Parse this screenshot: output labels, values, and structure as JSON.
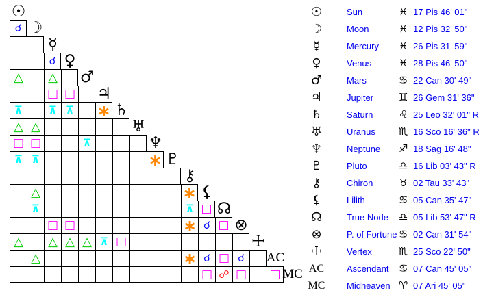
{
  "colors": {
    "table_text": "#0000ee",
    "glyph_black": "#000000",
    "grid_line": "#000000",
    "background": "#ffffff"
  },
  "aspects": {
    "conjunction": {
      "name": "conjunction",
      "symbol": "☌",
      "color": "#0000ff"
    },
    "sextile": {
      "name": "sextile",
      "symbol": "∗",
      "color": "#ff8800"
    },
    "square": {
      "name": "square",
      "symbol": "□",
      "color": "#ff00ff"
    },
    "trine": {
      "name": "trine",
      "symbol": "△",
      "color": "#00cc00"
    },
    "opposition": {
      "name": "opposition",
      "symbol": "☍",
      "color": "#ff0000"
    },
    "quincunx": {
      "name": "quincunx",
      "symbol": "⊼",
      "color": "#00ffff"
    }
  },
  "grid": {
    "rows": [
      {
        "id": "sun",
        "glyph": "☉",
        "angle": false,
        "cells": []
      },
      {
        "id": "moon",
        "glyph": "☽",
        "angle": false,
        "cells": [
          "conjunction"
        ]
      },
      {
        "id": "mercury",
        "glyph": "☿",
        "angle": false,
        "cells": [
          null,
          null
        ]
      },
      {
        "id": "venus",
        "glyph": "♀",
        "angle": false,
        "cells": [
          null,
          null,
          "conjunction"
        ]
      },
      {
        "id": "mars",
        "glyph": "♂",
        "angle": false,
        "cells": [
          "trine",
          null,
          "trine",
          null
        ]
      },
      {
        "id": "jupiter",
        "glyph": "♃",
        "angle": false,
        "cells": [
          null,
          null,
          "square",
          "square",
          null
        ]
      },
      {
        "id": "saturn",
        "glyph": "♄",
        "angle": false,
        "cells": [
          "quincunx",
          null,
          "quincunx",
          "quincunx",
          null,
          "sextile"
        ]
      },
      {
        "id": "uranus",
        "glyph": "♅",
        "angle": false,
        "cells": [
          "trine",
          "trine",
          null,
          null,
          null,
          null,
          null
        ]
      },
      {
        "id": "neptune",
        "glyph": "♆",
        "angle": false,
        "cells": [
          "square",
          "square",
          null,
          null,
          "quincunx",
          null,
          null,
          null
        ]
      },
      {
        "id": "pluto",
        "glyph": "♇",
        "angle": false,
        "cells": [
          "quincunx",
          "quincunx",
          null,
          null,
          null,
          null,
          null,
          null,
          "sextile"
        ]
      },
      {
        "id": "chiron",
        "glyph": "⚷",
        "angle": false,
        "cells": [
          null,
          null,
          null,
          null,
          null,
          null,
          null,
          null,
          null,
          null
        ]
      },
      {
        "id": "lilith",
        "glyph": "⚸",
        "angle": false,
        "cells": [
          null,
          "trine",
          null,
          null,
          null,
          null,
          null,
          null,
          null,
          null,
          "sextile"
        ]
      },
      {
        "id": "true-node",
        "glyph": "☊",
        "angle": false,
        "cells": [
          null,
          "quincunx",
          null,
          null,
          null,
          null,
          null,
          null,
          null,
          null,
          "quincunx",
          "square"
        ]
      },
      {
        "id": "fortune",
        "glyph": "⊗",
        "angle": false,
        "cells": [
          null,
          null,
          "square",
          "square",
          null,
          null,
          null,
          null,
          null,
          null,
          "sextile",
          "conjunction",
          "square"
        ]
      },
      {
        "id": "vertex",
        "glyph": "☩",
        "angle": false,
        "cells": [
          "trine",
          null,
          "trine",
          "trine",
          "trine",
          "quincunx",
          "square",
          null,
          null,
          null,
          null,
          null,
          null,
          null
        ]
      },
      {
        "id": "ascendant",
        "glyph": "AC",
        "angle": true,
        "cells": [
          null,
          "trine",
          null,
          null,
          null,
          null,
          null,
          null,
          null,
          null,
          "sextile",
          "conjunction",
          "square",
          "conjunction",
          null
        ]
      },
      {
        "id": "midheaven",
        "glyph": "MC",
        "angle": true,
        "cells": [
          null,
          null,
          null,
          null,
          null,
          null,
          null,
          null,
          null,
          null,
          null,
          "square",
          "opposition",
          "square",
          null,
          "square"
        ]
      }
    ]
  },
  "table": {
    "rows": [
      {
        "id": "sun",
        "glyph": "☉",
        "angle": false,
        "name": "Sun",
        "sign": "♓",
        "position": "17 Pis 46' 01\""
      },
      {
        "id": "moon",
        "glyph": "☽",
        "angle": false,
        "name": "Moon",
        "sign": "♓",
        "position": "12 Pis 32' 50\""
      },
      {
        "id": "mercury",
        "glyph": "☿",
        "angle": false,
        "name": "Mercury",
        "sign": "♓",
        "position": "26 Pis 31' 59\""
      },
      {
        "id": "venus",
        "glyph": "♀",
        "angle": false,
        "name": "Venus",
        "sign": "♓",
        "position": "28 Pis 46' 50\""
      },
      {
        "id": "mars",
        "glyph": "♂",
        "angle": false,
        "name": "Mars",
        "sign": "♋",
        "position": "22 Can 30' 49\""
      },
      {
        "id": "jupiter",
        "glyph": "♃",
        "angle": false,
        "name": "Jupiter",
        "sign": "♊",
        "position": "26 Gem 31' 36\""
      },
      {
        "id": "saturn",
        "glyph": "♄",
        "angle": false,
        "name": "Saturn",
        "sign": "♌",
        "position": "25 Leo 32' 01\" R"
      },
      {
        "id": "uranus",
        "glyph": "♅",
        "angle": false,
        "name": "Uranus",
        "sign": "♏",
        "position": "16 Sco 16' 36\" R"
      },
      {
        "id": "neptune",
        "glyph": "♆",
        "angle": false,
        "name": "Neptune",
        "sign": "♐",
        "position": "18 Sag 16' 48\""
      },
      {
        "id": "pluto",
        "glyph": "♇",
        "angle": false,
        "name": "Pluto",
        "sign": "♎",
        "position": "16 Lib 03' 43\" R"
      },
      {
        "id": "chiron",
        "glyph": "⚷",
        "angle": false,
        "name": "Chiron",
        "sign": "♉",
        "position": "02 Tau 33' 43\""
      },
      {
        "id": "lilith",
        "glyph": "⚸",
        "angle": false,
        "name": "Lilith",
        "sign": "♋",
        "position": "05 Can 35' 47\""
      },
      {
        "id": "true-node",
        "glyph": "☊",
        "angle": false,
        "name": "True Node",
        "sign": "♎",
        "position": "05 Lib 53' 47\" R"
      },
      {
        "id": "fortune",
        "glyph": "⊗",
        "angle": false,
        "name": "P. of Fortune",
        "sign": "♋",
        "position": "02 Can 31' 54\""
      },
      {
        "id": "vertex",
        "glyph": "☩",
        "angle": false,
        "name": "Vertex",
        "sign": "♏",
        "position": "25 Sco 22' 50\""
      },
      {
        "id": "ascendant",
        "glyph": "AC",
        "angle": true,
        "name": "Ascendant",
        "sign": "♋",
        "position": "07 Can 45' 05\""
      },
      {
        "id": "midheaven",
        "glyph": "MC",
        "angle": true,
        "name": "Midheaven",
        "sign": "♈",
        "position": "07 Ari 45' 05\""
      }
    ]
  }
}
